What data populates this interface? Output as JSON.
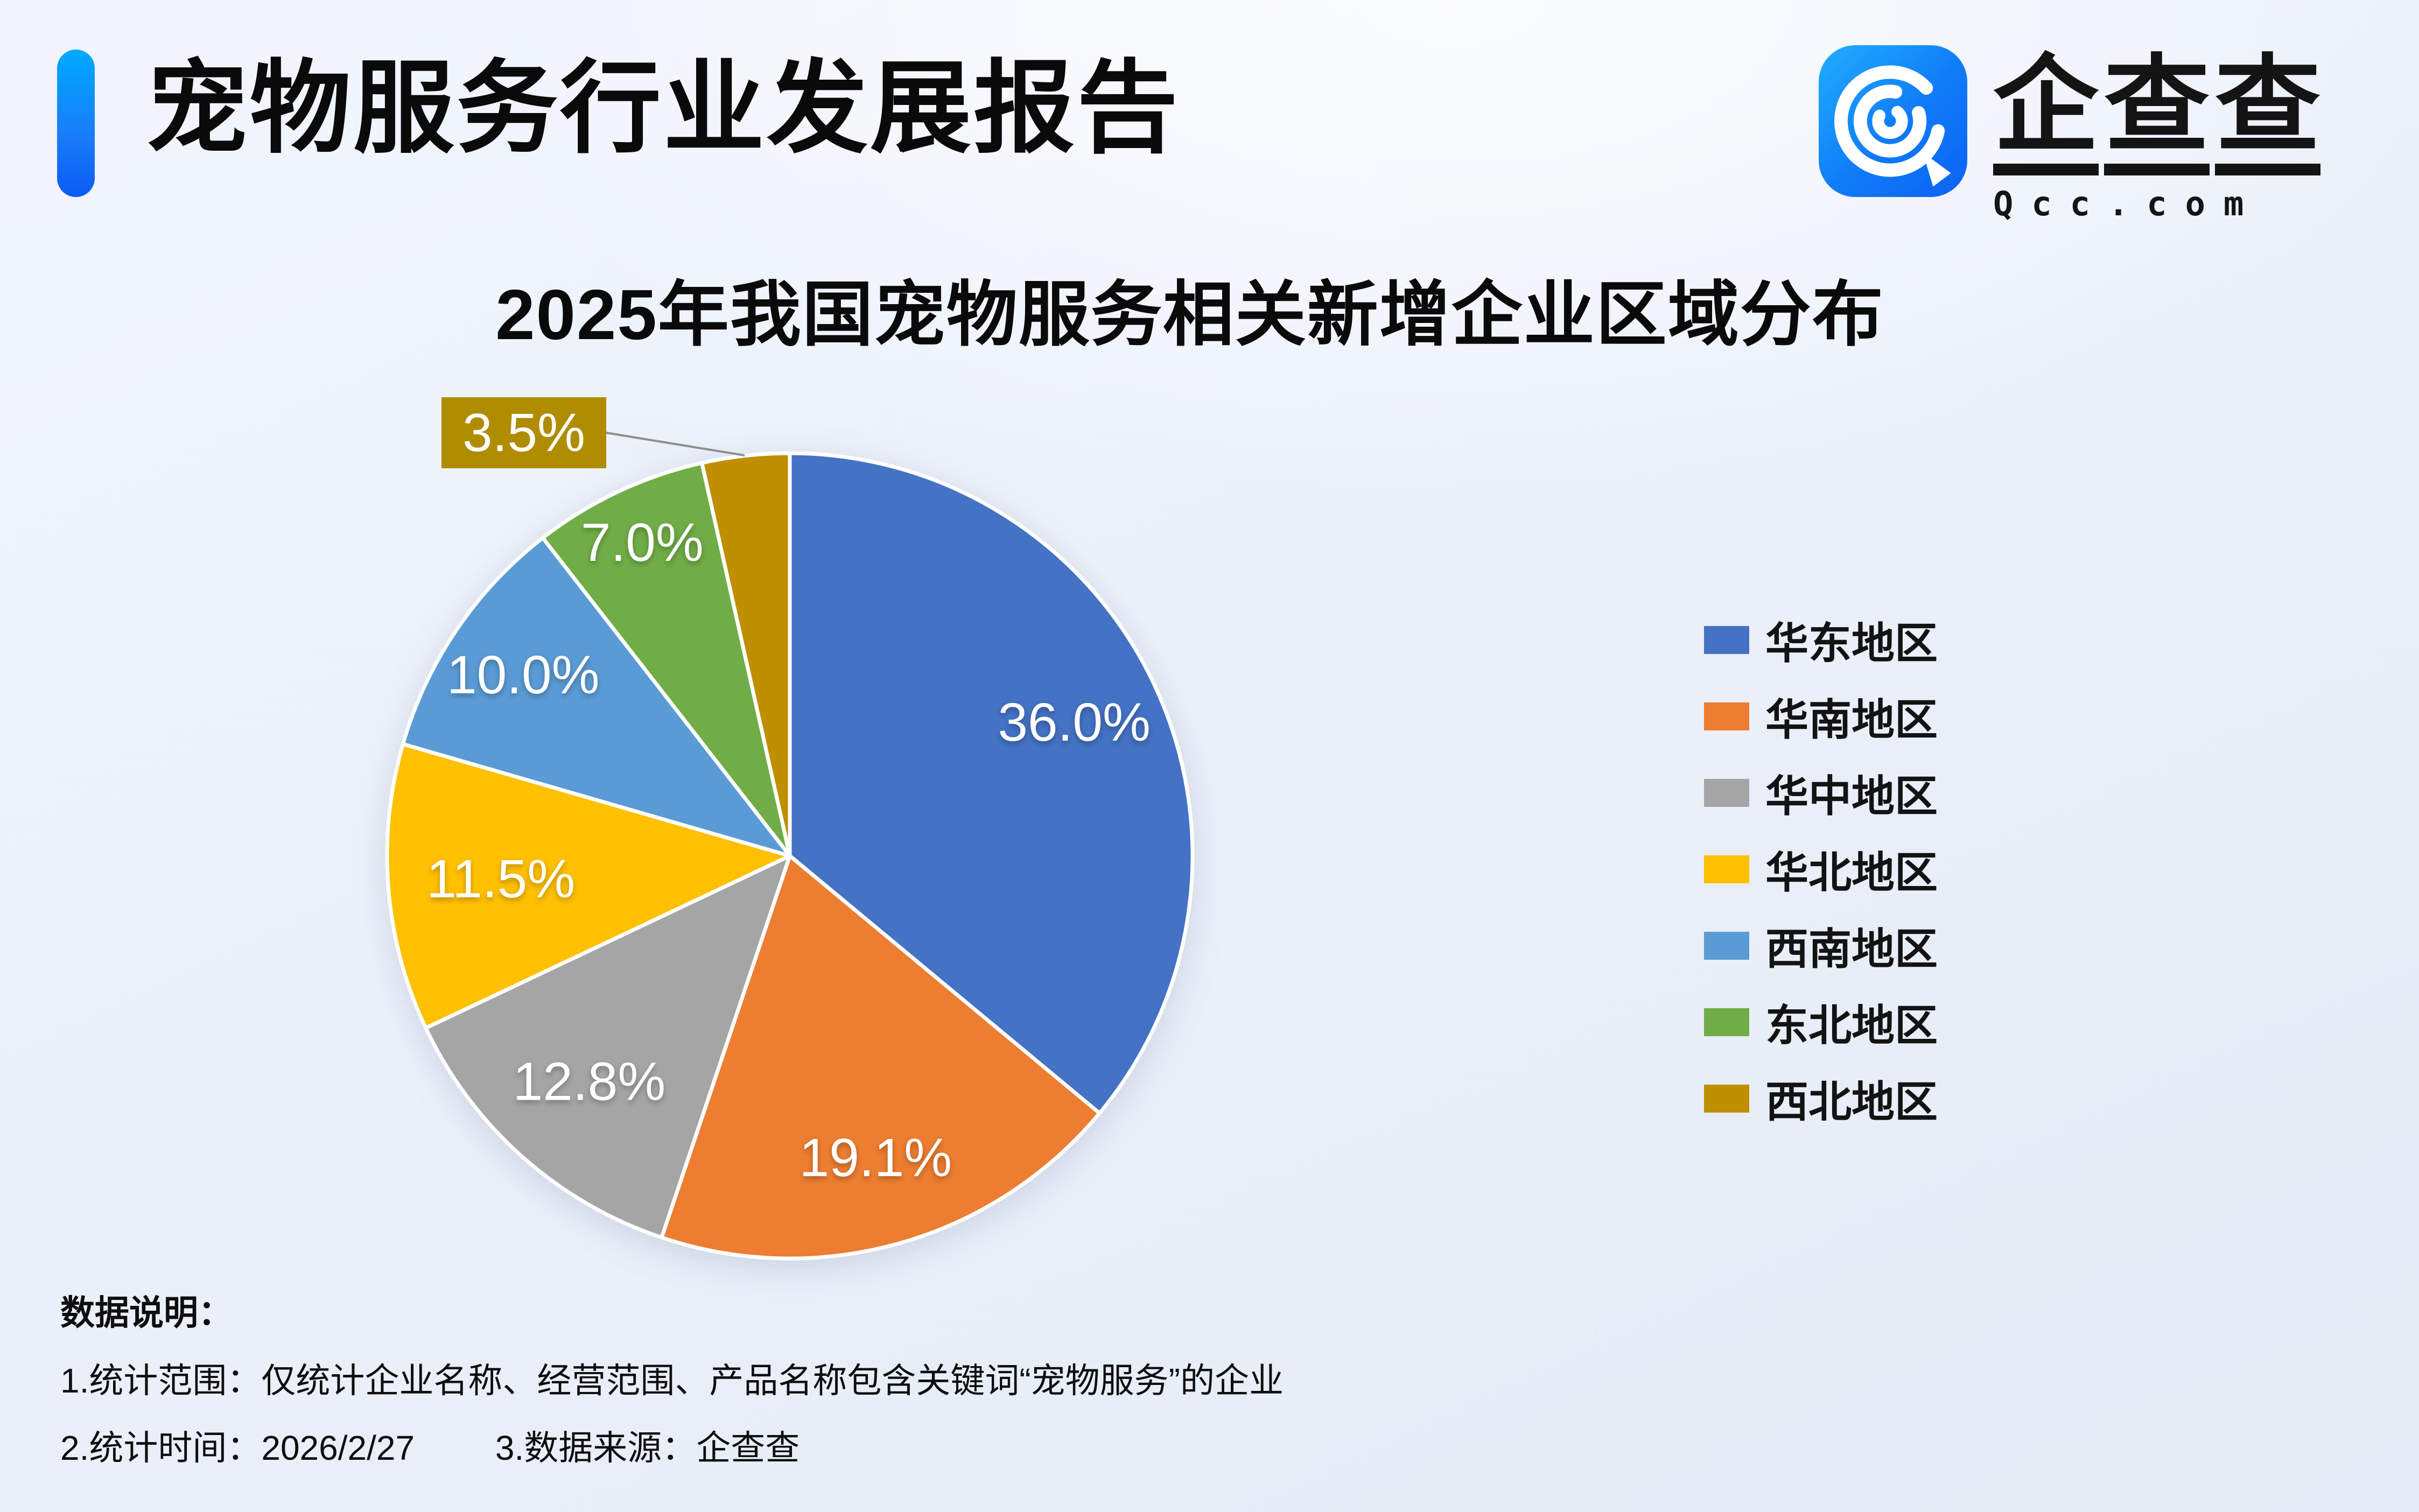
{
  "header": {
    "title": "宠物服务行业发展报告",
    "brand": {
      "name": "企查查",
      "domain": "Qcc.com"
    }
  },
  "chart_data": {
    "type": "pie",
    "title": "2025年我国宠物服务相关新增企业区域分布",
    "categories": [
      "华东地区",
      "华南地区",
      "华中地区",
      "华北地区",
      "西南地区",
      "东北地区",
      "西北地区"
    ],
    "values": [
      36.0,
      19.1,
      12.8,
      11.5,
      10.0,
      7.0,
      3.5
    ],
    "labels": [
      "36.0%",
      "19.1%",
      "12.8%",
      "11.5%",
      "10.0%",
      "7.0%",
      "3.5%"
    ],
    "colors": [
      "#4472C4",
      "#ED7D31",
      "#A5A5A5",
      "#FFC000",
      "#5B9BD5",
      "#70AD47",
      "#BF8F00"
    ],
    "unit": "%",
    "start_angle_deg": 0,
    "direction": "clockwise",
    "legend_position": "right",
    "slice_border_color": "#ffffff",
    "callout": {
      "slice": "西北地区",
      "label": "3.5%",
      "box_color": "#B08C00",
      "line_color": "#8f8f8f"
    }
  },
  "notes": {
    "heading": "数据说明：",
    "line1": "1.统计范围：仅统计企业名称、经营范围、产品名称包含关键词“宠物服务”的企业",
    "line2_time": "2.统计时间：2026/2/27",
    "line2_source": "3.数据来源：企查查"
  }
}
